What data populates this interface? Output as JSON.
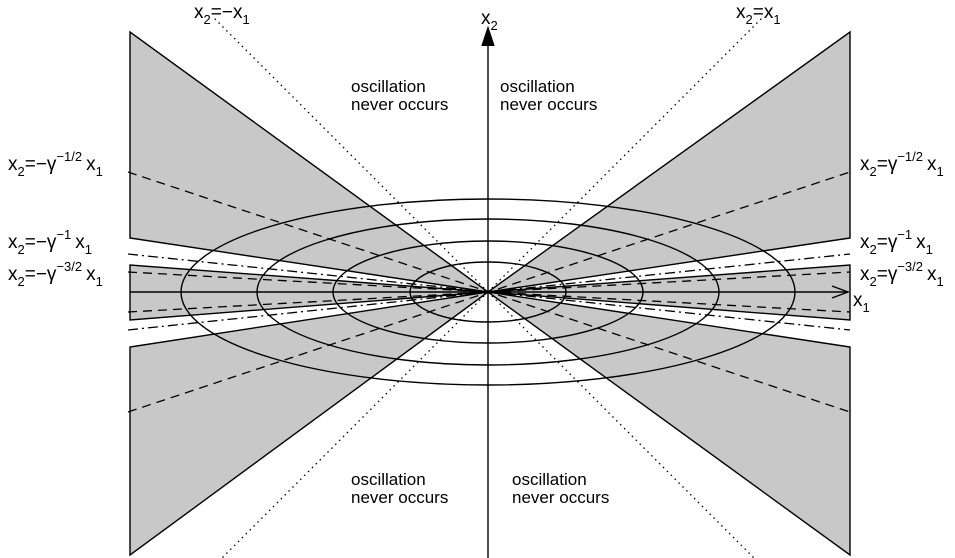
{
  "axes": {
    "x_label": {
      "base": "x",
      "sub": "1"
    },
    "y_label": {
      "base": "x",
      "sub": "2"
    }
  },
  "region_labels": [
    {
      "id": "top-left",
      "line1": "oscillation",
      "line2": "never occurs"
    },
    {
      "id": "top-right",
      "line1": "oscillation",
      "line2": "never occurs"
    },
    {
      "id": "bottom-left",
      "line1": "oscillation",
      "line2": "never occurs"
    },
    {
      "id": "bottom-right",
      "line1": "oscillation",
      "line2": "never occurs"
    }
  ],
  "line_labels": {
    "diag_pos": {
      "a": "x",
      "a_sub": "2",
      "eq": "=",
      "b": "x",
      "b_sub": "1"
    },
    "diag_neg": {
      "a": "x",
      "a_sub": "2",
      "eq": "=−",
      "b": "x",
      "b_sub": "1"
    },
    "g_half_pos": {
      "a": "x",
      "a_sub": "2",
      "eq": "=γ",
      "exp": "−1/2",
      "b": "x",
      "b_sub": "1"
    },
    "g_half_neg": {
      "a": "x",
      "a_sub": "2",
      "eq": "=−γ",
      "exp": "−1/2",
      "b": "x",
      "b_sub": "1"
    },
    "g_one_pos": {
      "a": "x",
      "a_sub": "2",
      "eq": "=γ",
      "exp": "−1",
      "b": "x",
      "b_sub": "1"
    },
    "g_one_neg": {
      "a": "x",
      "a_sub": "2",
      "eq": "=−γ",
      "exp": "−1",
      "b": "x",
      "b_sub": "1"
    },
    "g_32_pos": {
      "a": "x",
      "a_sub": "2",
      "eq": "=γ",
      "exp": "−3/2",
      "b": "x",
      "b_sub": "1"
    },
    "g_32_neg": {
      "a": "x",
      "a_sub": "2",
      "eq": "=−γ",
      "exp": "−3/2",
      "b": "x",
      "b_sub": "1"
    }
  },
  "colors": {
    "shade": "#c8c8c8",
    "ink": "#000000"
  }
}
